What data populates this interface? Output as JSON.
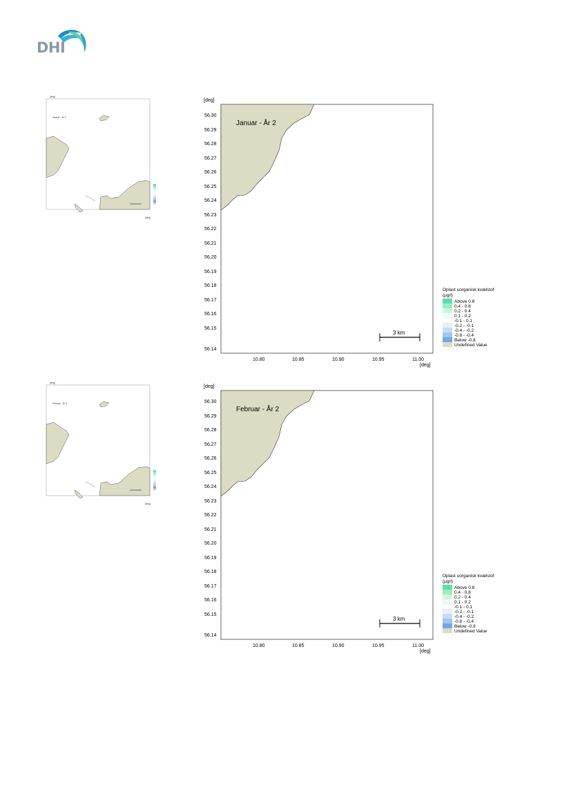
{
  "logo": {
    "text": "DHI"
  },
  "colors": {
    "land": "#dcdbc3",
    "above_0_8": "#5fdcab",
    "c_0_4_0_8": "#9eebc7",
    "c_0_2_0_4": "#cdf5e1",
    "c_0_1_0_2": "#ecfbf3",
    "c_m0_1_0_1": "#ffffff",
    "c_m0_2_m0_1": "#e6effa",
    "c_m0_4_m0_2": "#c7dcf5",
    "c_m0_8_m0_4": "#a2c7f0",
    "below_m0_8": "#72a8e6",
    "undefined": "#dcdbc3"
  },
  "panels": [
    {
      "title": "Januar - År 2",
      "axis_unit_y": "[deg]",
      "axis_unit_x": "[deg]",
      "y_ticks": [
        "56.30",
        "56.29",
        "56.28",
        "56.27",
        "56.26",
        "56.25",
        "56.24",
        "56.23",
        "56.22",
        "56.21",
        "56.20",
        "56.19",
        "56.18",
        "56.17",
        "56.16",
        "56.15",
        "56.14"
      ],
      "x_ticks": [
        "10.80",
        "10.85",
        "10.90",
        "10.95",
        "11.00"
      ],
      "scalebar": "3 km",
      "legend_title_1": "Oplast uorganisk kvælstof",
      "legend_title_2": "(µg/l)",
      "legend": [
        "Above  0.8",
        "0.4 -  0.8",
        "0.2 -  0.4",
        "0.1 -  0.2",
        "-0.1 -  0.1",
        "-0.2 - -0.1",
        "-0.4 - -0.2",
        "-0.8 - -0.4",
        "Below -0.8",
        "Undefined Value"
      ]
    },
    {
      "title": "Februar - År 2",
      "axis_unit_y": "[deg]",
      "axis_unit_x": "[deg]",
      "y_ticks": [
        "56.30",
        "56.29",
        "56.28",
        "56.27",
        "56.26",
        "56.25",
        "56.24",
        "56.23",
        "56.22",
        "56.21",
        "56.20",
        "56.19",
        "56.18",
        "56.17",
        "56.16",
        "56.15",
        "56.14"
      ],
      "x_ticks": [
        "10.80",
        "10.85",
        "10.90",
        "10.95",
        "11.00"
      ],
      "scalebar": "3 km",
      "legend_title_1": "Oplast uorganisk kvælstof",
      "legend_title_2": "(µg/l)",
      "legend": [
        "Above  0.8",
        "0.4 -  0.8",
        "0.2 -  0.4",
        "0.1 -  0.2",
        "-0.1 -  0.1",
        "-0.2 - -0.1",
        "-0.4 - -0.2",
        "-0.8 - -0.4",
        "Below -0.8",
        "Undefined Value"
      ]
    }
  ]
}
